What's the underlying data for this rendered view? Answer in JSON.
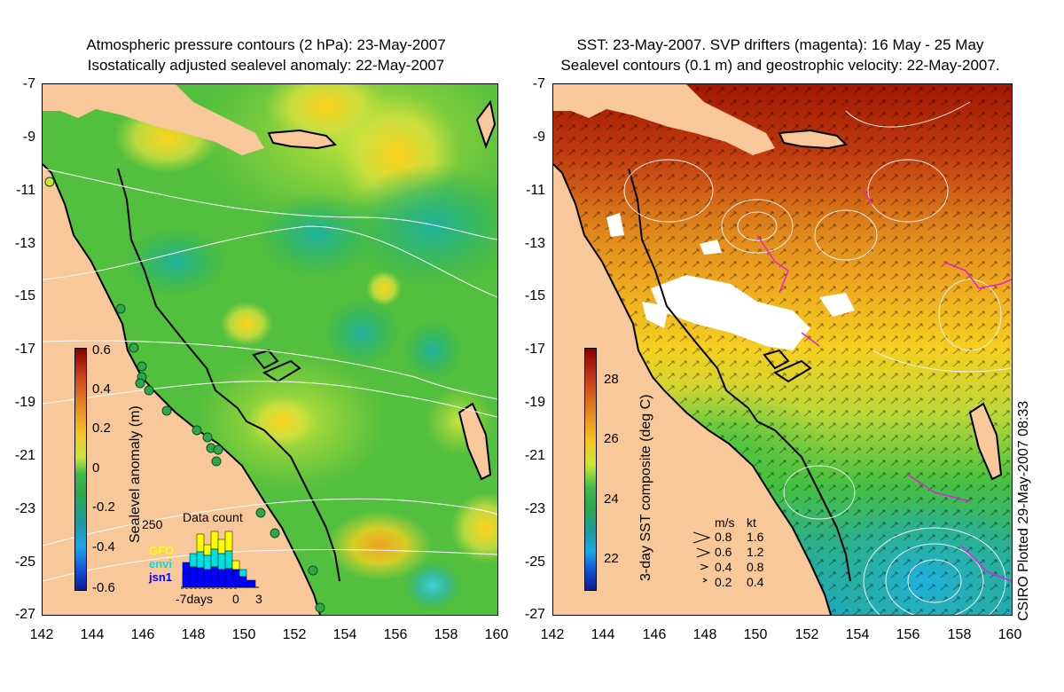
{
  "left_panel": {
    "title_line1": "Atmospheric pressure contours (2 hPa): 23-May-2007",
    "title_line2": "Isostatically adjusted sealevel anomaly: 22-May-2007",
    "colorbar_label": "Sealevel anomaly (m)",
    "colorbar_ticks": [
      "0.6",
      "0.4",
      "0.2",
      "0",
      "-0.2",
      "-0.4",
      "-0.6"
    ],
    "colorbar_range": [
      -0.6,
      0.6
    ],
    "inset": {
      "title": "Data count",
      "ymax_label": "250",
      "x_ticks": [
        "-7days",
        "0",
        "3"
      ],
      "satellites": [
        "GFO",
        "envi",
        "jsn1"
      ],
      "satellite_colors": [
        "#ffff00",
        "#00e0e0",
        "#0000ff"
      ]
    }
  },
  "right_panel": {
    "title_line1": "SST: 23-May-2007. SVP drifters (magenta): 16 May - 25 May",
    "title_line2": "Sealevel contours (0.1 m) and geostrophic velocity: 22-May-2007.",
    "colorbar_label": "3-day SST composite (deg C)",
    "colorbar_ticks": [
      "28",
      "26",
      "24",
      "22"
    ],
    "colorbar_range": [
      21,
      29
    ],
    "velocity_legend": {
      "header_ms": "m/s",
      "header_kt": "kt",
      "rows": [
        {
          "ms": "0.8",
          "kt": "1.6"
        },
        {
          "ms": "0.6",
          "kt": "1.2"
        },
        {
          "ms": "0.4",
          "kt": "0.8"
        },
        {
          "ms": "0.2",
          "kt": "0.4"
        }
      ]
    }
  },
  "axes": {
    "y_ticks": [
      "-7",
      "-9",
      "-11",
      "-13",
      "-15",
      "-17",
      "-19",
      "-21",
      "-23",
      "-25",
      "-27"
    ],
    "x_ticks": [
      "142",
      "144",
      "146",
      "148",
      "150",
      "152",
      "154",
      "156",
      "158",
      "160"
    ],
    "lon_range": [
      142,
      160
    ],
    "lat_range": [
      -27,
      -7
    ]
  },
  "credit": "CSIRO Plotted 29-May-2007 08:33",
  "colors": {
    "land": "#f9c89a",
    "sla_base": "#57c43f",
    "sst_warm": "#c84010",
    "sst_cold": "#1ab0c8"
  }
}
